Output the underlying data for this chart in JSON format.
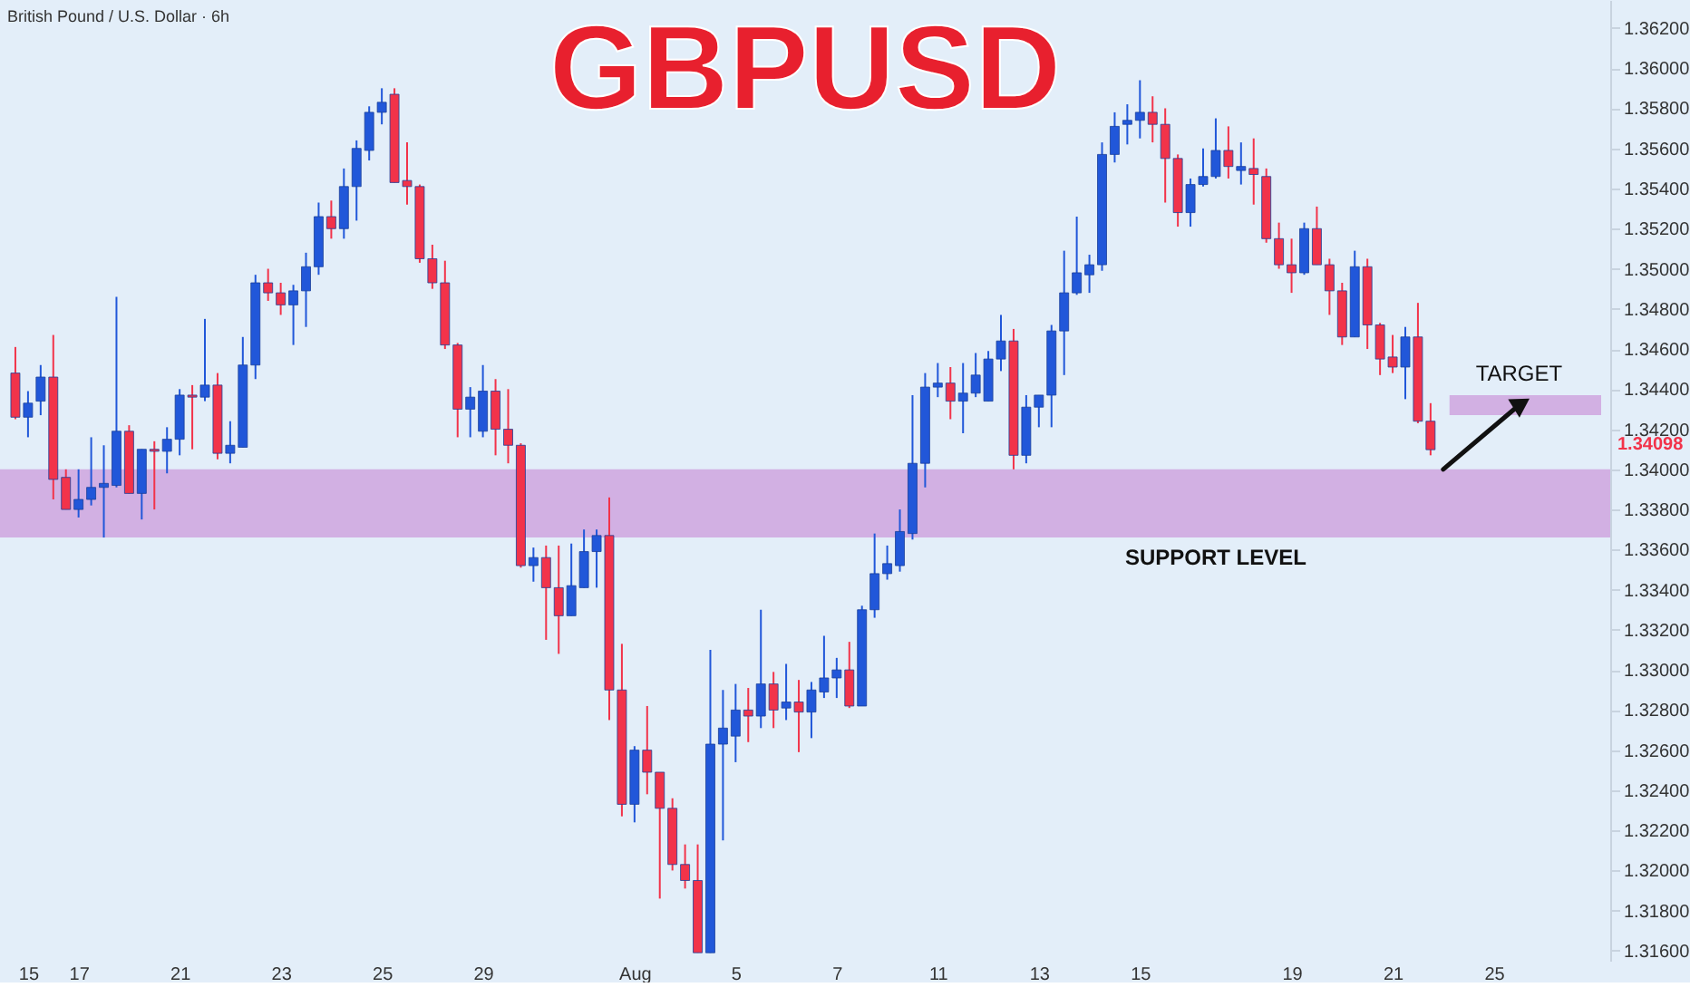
{
  "chart_data": {
    "type": "candlestick",
    "title": "GBPUSD",
    "subtitle": "British Pound / U.S. Dollar · 6h",
    "categories": [
      null,
      "15",
      null,
      null,
      null,
      "17",
      null,
      null,
      null,
      null,
      null,
      null,
      null,
      "21",
      null,
      null,
      null,
      null,
      null,
      null,
      null,
      "23",
      null,
      null,
      null,
      null,
      null,
      null,
      null,
      "25",
      null,
      null,
      null,
      null,
      null,
      null,
      null,
      "29",
      null,
      null,
      null,
      null,
      null,
      null,
      null,
      null,
      null,
      null,
      null,
      "Aug",
      null,
      null,
      null,
      null,
      null,
      null,
      null,
      "5",
      null,
      null,
      null,
      null,
      null,
      null,
      null,
      "7",
      null,
      null,
      null,
      null,
      null,
      null,
      null,
      "11",
      null,
      null,
      null,
      null,
      null,
      null,
      null,
      "13",
      null,
      null,
      null,
      null,
      null,
      null,
      null,
      "15",
      null,
      null,
      null,
      null,
      null,
      null,
      null,
      null,
      null,
      null,
      null,
      "19",
      null,
      null,
      null,
      null,
      null,
      null,
      null,
      "21",
      null,
      null,
      null,
      null,
      null,
      null,
      null,
      "25",
      null,
      null,
      null,
      null,
      null,
      null,
      null,
      null
    ],
    "ohlc": [
      [
        1.3448,
        1.3461,
        1.3425,
        1.3426
      ],
      [
        1.3426,
        1.3439,
        1.3416,
        1.3433
      ],
      [
        1.3434,
        1.3452,
        1.3427,
        1.3446
      ],
      [
        1.3446,
        1.3467,
        1.3385,
        1.3395
      ],
      [
        1.3396,
        1.34,
        1.338,
        1.338
      ],
      [
        1.338,
        1.34,
        1.3376,
        1.3385
      ],
      [
        1.3385,
        1.3416,
        1.3382,
        1.3391
      ],
      [
        1.3391,
        1.3412,
        1.3366,
        1.3393
      ],
      [
        1.3392,
        1.3486,
        1.3391,
        1.3419
      ],
      [
        1.3419,
        1.3422,
        1.3388,
        1.3388
      ],
      [
        1.3388,
        1.341,
        1.3375,
        1.341
      ],
      [
        1.341,
        1.3414,
        1.338,
        1.3409
      ],
      [
        1.3409,
        1.3421,
        1.3398,
        1.3415
      ],
      [
        1.3415,
        1.344,
        1.3407,
        1.3437
      ],
      [
        1.3437,
        1.3442,
        1.341,
        1.3436
      ],
      [
        1.3436,
        1.3475,
        1.3434,
        1.3442
      ],
      [
        1.3442,
        1.3448,
        1.3405,
        1.3408
      ],
      [
        1.3408,
        1.3424,
        1.3403,
        1.3412
      ],
      [
        1.3411,
        1.3466,
        1.3411,
        1.3452
      ],
      [
        1.3452,
        1.3497,
        1.3445,
        1.3493
      ],
      [
        1.3493,
        1.35,
        1.3484,
        1.3488
      ],
      [
        1.3488,
        1.3493,
        1.3477,
        1.3482
      ],
      [
        1.3482,
        1.3492,
        1.3462,
        1.3489
      ],
      [
        1.3489,
        1.3508,
        1.3471,
        1.3501
      ],
      [
        1.3501,
        1.3533,
        1.3497,
        1.3526
      ],
      [
        1.3526,
        1.3534,
        1.3515,
        1.352
      ],
      [
        1.352,
        1.355,
        1.3515,
        1.3541
      ],
      [
        1.3541,
        1.3564,
        1.3524,
        1.356
      ],
      [
        1.3559,
        1.3581,
        1.3554,
        1.3578
      ],
      [
        1.3578,
        1.359,
        1.3572,
        1.3583
      ],
      [
        1.3587,
        1.359,
        1.3543,
        1.3543
      ],
      [
        1.3544,
        1.3563,
        1.3532,
        1.3541
      ],
      [
        1.3541,
        1.3542,
        1.3503,
        1.3505
      ],
      [
        1.3505,
        1.3512,
        1.349,
        1.3493
      ],
      [
        1.3493,
        1.3504,
        1.346,
        1.3462
      ],
      [
        1.3462,
        1.3463,
        1.3416,
        1.343
      ],
      [
        1.343,
        1.3441,
        1.3416,
        1.3436
      ],
      [
        1.3419,
        1.3452,
        1.3416,
        1.3439
      ],
      [
        1.3439,
        1.3445,
        1.3407,
        1.342
      ],
      [
        1.342,
        1.344,
        1.3403,
        1.3412
      ],
      [
        1.3412,
        1.3413,
        1.3351,
        1.3352
      ],
      [
        1.3352,
        1.3361,
        1.3344,
        1.3356
      ],
      [
        1.3356,
        1.3362,
        1.3315,
        1.3341
      ],
      [
        1.3341,
        1.3362,
        1.3308,
        1.3327
      ],
      [
        1.3327,
        1.3363,
        1.3327,
        1.3342
      ],
      [
        1.3341,
        1.337,
        1.3341,
        1.3359
      ],
      [
        1.3359,
        1.337,
        1.3341,
        1.3367
      ],
      [
        1.3367,
        1.3386,
        1.3275,
        1.329
      ],
      [
        1.329,
        1.3313,
        1.3227,
        1.3233
      ],
      [
        1.3233,
        1.3262,
        1.3224,
        1.326
      ],
      [
        1.326,
        1.3282,
        1.3238,
        1.3249
      ],
      [
        1.3249,
        1.3249,
        1.3186,
        1.3231
      ],
      [
        1.3231,
        1.3236,
        1.32,
        1.3203
      ],
      [
        1.3203,
        1.3213,
        1.3191,
        1.3195
      ],
      [
        1.3195,
        1.3213,
        1.3159,
        1.3159
      ],
      [
        1.3159,
        1.331,
        1.3159,
        1.3263
      ],
      [
        1.3263,
        1.329,
        1.3215,
        1.3271
      ],
      [
        1.3267,
        1.3293,
        1.3254,
        1.328
      ],
      [
        1.328,
        1.3291,
        1.3264,
        1.3277
      ],
      [
        1.3277,
        1.333,
        1.3271,
        1.3293
      ],
      [
        1.3293,
        1.3299,
        1.3271,
        1.328
      ],
      [
        1.3281,
        1.3303,
        1.3275,
        1.3284
      ],
      [
        1.3284,
        1.3295,
        1.3259,
        1.3279
      ],
      [
        1.3279,
        1.3294,
        1.3266,
        1.329
      ],
      [
        1.3289,
        1.3317,
        1.3286,
        1.3296
      ],
      [
        1.3296,
        1.3306,
        1.3286,
        1.33
      ],
      [
        1.33,
        1.3314,
        1.3281,
        1.3282
      ],
      [
        1.3282,
        1.3332,
        1.3282,
        1.333
      ],
      [
        1.333,
        1.3368,
        1.3326,
        1.3348
      ],
      [
        1.3348,
        1.3362,
        1.3345,
        1.3353
      ],
      [
        1.3352,
        1.338,
        1.3349,
        1.3369
      ],
      [
        1.3368,
        1.3437,
        1.3365,
        1.3403
      ],
      [
        1.3403,
        1.3448,
        1.3391,
        1.3441
      ],
      [
        1.3441,
        1.3453,
        1.3436,
        1.3443
      ],
      [
        1.3443,
        1.3451,
        1.3425,
        1.3434
      ],
      [
        1.3434,
        1.3453,
        1.3418,
        1.3438
      ],
      [
        1.3438,
        1.3458,
        1.3436,
        1.3447
      ],
      [
        1.3434,
        1.3459,
        1.3434,
        1.3455
      ],
      [
        1.3455,
        1.3477,
        1.3449,
        1.3464
      ],
      [
        1.3464,
        1.347,
        1.34,
        1.3407
      ],
      [
        1.3407,
        1.3437,
        1.3403,
        1.3431
      ],
      [
        1.3431,
        1.3437,
        1.3421,
        1.3437
      ],
      [
        1.3437,
        1.3472,
        1.3421,
        1.3469
      ],
      [
        1.3469,
        1.3509,
        1.3447,
        1.3488
      ],
      [
        1.3488,
        1.3526,
        1.3487,
        1.3498
      ],
      [
        1.3497,
        1.3507,
        1.3488,
        1.3502
      ],
      [
        1.3502,
        1.3563,
        1.3499,
        1.3557
      ],
      [
        1.3557,
        1.3578,
        1.3553,
        1.3571
      ],
      [
        1.3572,
        1.3582,
        1.3562,
        1.3574
      ],
      [
        1.3574,
        1.3594,
        1.3565,
        1.3578
      ],
      [
        1.3578,
        1.3586,
        1.3563,
        1.3572
      ],
      [
        1.3572,
        1.358,
        1.3533,
        1.3555
      ],
      [
        1.3555,
        1.3557,
        1.3521,
        1.3528
      ],
      [
        1.3528,
        1.3545,
        1.3521,
        1.3542
      ],
      [
        1.3542,
        1.356,
        1.3541,
        1.3546
      ],
      [
        1.3546,
        1.3575,
        1.3545,
        1.3559
      ],
      [
        1.3559,
        1.3571,
        1.3545,
        1.3551
      ],
      [
        1.3549,
        1.3563,
        1.3542,
        1.3551
      ],
      [
        1.355,
        1.3565,
        1.3532,
        1.3547
      ],
      [
        1.3546,
        1.355,
        1.3513,
        1.3515
      ],
      [
        1.3515,
        1.3523,
        1.35,
        1.3502
      ],
      [
        1.3502,
        1.3515,
        1.3488,
        1.3498
      ],
      [
        1.3498,
        1.3523,
        1.3497,
        1.352
      ],
      [
        1.352,
        1.3531,
        1.3502,
        1.3502
      ],
      [
        1.3502,
        1.3505,
        1.3477,
        1.3489
      ],
      [
        1.3489,
        1.3493,
        1.3462,
        1.3466
      ],
      [
        1.3466,
        1.3509,
        1.3466,
        1.3501
      ],
      [
        1.3501,
        1.3505,
        1.346,
        1.3472
      ],
      [
        1.3472,
        1.3473,
        1.3447,
        1.3455
      ],
      [
        1.3456,
        1.3467,
        1.3448,
        1.3451
      ],
      [
        1.3451,
        1.3471,
        1.3435,
        1.3466
      ],
      [
        1.3466,
        1.3483,
        1.3423,
        1.3424
      ],
      [
        1.3424,
        1.3433,
        1.3407,
        1.34098
      ],
      null,
      null,
      null,
      null,
      null,
      null,
      null,
      null,
      null,
      null,
      null,
      null,
      null
    ],
    "ylim": [
      1.3155,
      1.3634
    ],
    "yticks": [
      {
        "value": 1.316,
        "label": "1.31600"
      },
      {
        "value": 1.318,
        "label": "1.31800"
      },
      {
        "value": 1.32,
        "label": "1.32000"
      },
      {
        "value": 1.322,
        "label": "1.32200"
      },
      {
        "value": 1.324,
        "label": "1.32400"
      },
      {
        "value": 1.326,
        "label": "1.32600"
      },
      {
        "value": 1.328,
        "label": "1.32800"
      },
      {
        "value": 1.33,
        "label": "1.33000"
      },
      {
        "value": 1.332,
        "label": "1.33200"
      },
      {
        "value": 1.334,
        "label": "1.33400"
      },
      {
        "value": 1.336,
        "label": "1.33600"
      },
      {
        "value": 1.338,
        "label": "1.33800"
      },
      {
        "value": 1.34,
        "label": "1.34000"
      },
      {
        "value": 1.342,
        "label": "1.34200"
      },
      {
        "value": 1.344,
        "label": "1.34400"
      },
      {
        "value": 1.346,
        "label": "1.34600"
      },
      {
        "value": 1.348,
        "label": "1.34800"
      },
      {
        "value": 1.35,
        "label": "1.35000"
      },
      {
        "value": 1.352,
        "label": "1.35200"
      },
      {
        "value": 1.354,
        "label": "1.35400"
      },
      {
        "value": 1.356,
        "label": "1.35600"
      },
      {
        "value": 1.358,
        "label": "1.35800"
      },
      {
        "value": 1.36,
        "label": "1.36000"
      },
      {
        "value": 1.362,
        "label": "1.36200"
      }
    ],
    "bands": [
      {
        "axis": "y",
        "from": 1.3366,
        "to": 1.34,
        "label": "SUPPORT LEVEL",
        "color": "#cfa9e0"
      },
      {
        "axis": "y",
        "from": 1.3427,
        "to": 1.3437,
        "label": "TARGET",
        "color": "#cfa9e0"
      }
    ],
    "annotations": [
      "1.34098"
    ]
  }
}
